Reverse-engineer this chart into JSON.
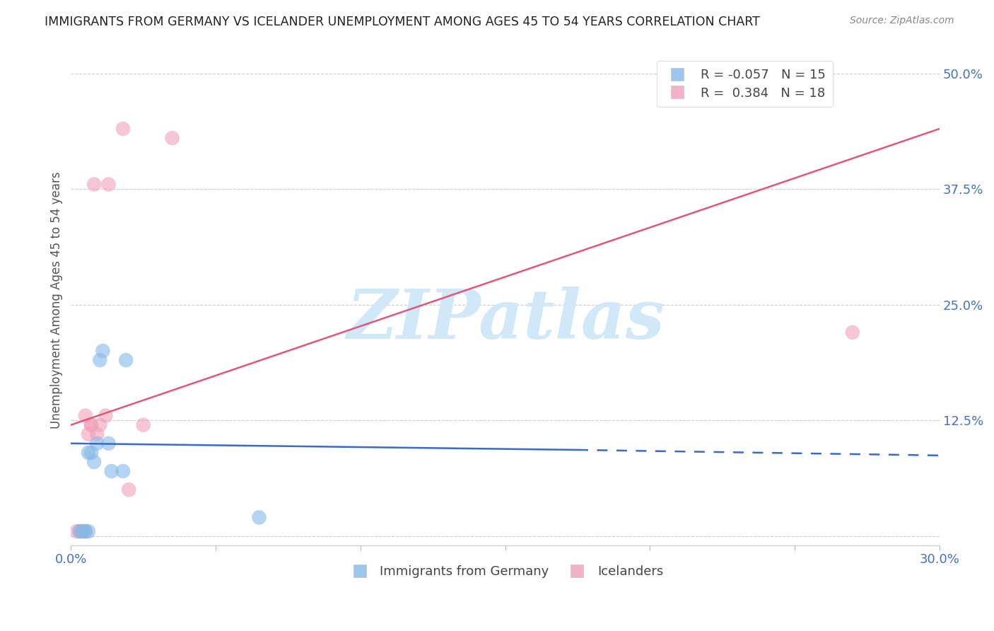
{
  "title": "IMMIGRANTS FROM GERMANY VS ICELANDER UNEMPLOYMENT AMONG AGES 45 TO 54 YEARS CORRELATION CHART",
  "source": "Source: ZipAtlas.com",
  "ylabel": "Unemployment Among Ages 45 to 54 years",
  "xlim": [
    0.0,
    0.3
  ],
  "ylim": [
    -0.01,
    0.52
  ],
  "yticks": [
    0.0,
    0.125,
    0.25,
    0.375,
    0.5
  ],
  "ytick_labels": [
    "",
    "12.5%",
    "25.0%",
    "37.5%",
    "50.0%"
  ],
  "xticks": [
    0.0,
    0.05,
    0.1,
    0.15,
    0.2,
    0.25,
    0.3
  ],
  "xtick_labels": [
    "0.0%",
    "",
    "",
    "",
    "",
    "",
    "30.0%"
  ],
  "watermark": "ZIPatlas",
  "blue_scatter_x": [
    0.003,
    0.004,
    0.005,
    0.006,
    0.006,
    0.007,
    0.008,
    0.009,
    0.01,
    0.011,
    0.013,
    0.014,
    0.018,
    0.019,
    0.065
  ],
  "blue_scatter_y": [
    0.005,
    0.005,
    0.005,
    0.005,
    0.09,
    0.09,
    0.08,
    0.1,
    0.19,
    0.2,
    0.1,
    0.07,
    0.07,
    0.19,
    0.02
  ],
  "pink_scatter_x": [
    0.002,
    0.003,
    0.004,
    0.005,
    0.005,
    0.006,
    0.007,
    0.007,
    0.008,
    0.009,
    0.01,
    0.012,
    0.013,
    0.018,
    0.02,
    0.025,
    0.035,
    0.27
  ],
  "pink_scatter_y": [
    0.005,
    0.005,
    0.005,
    0.005,
    0.13,
    0.11,
    0.12,
    0.12,
    0.38,
    0.11,
    0.12,
    0.13,
    0.38,
    0.44,
    0.05,
    0.12,
    0.43,
    0.22
  ],
  "blue_R": -0.057,
  "blue_N": 15,
  "pink_R": 0.384,
  "pink_N": 18,
  "blue_line_x": [
    0.0,
    0.175,
    0.3
  ],
  "blue_line_y": [
    0.1,
    0.093,
    0.087
  ],
  "blue_line_solid_end": 0.175,
  "pink_line_x": [
    0.0,
    0.3
  ],
  "pink_line_y": [
    0.12,
    0.44
  ],
  "blue_color": "#85B8E8",
  "pink_color": "#F0A0B8",
  "blue_line_color": "#3A6ACC",
  "pink_line_color": "#E05878",
  "title_color": "#222222",
  "axis_label_color": "#4472C4",
  "right_label_color": "#4472C4",
  "background_color": "#FFFFFF",
  "grid_color": "#CCCCCC",
  "watermark_color": "#D0E8F8",
  "legend_blue_label": "R = -0.057   N = 15",
  "legend_pink_label": "R =  0.384   N = 18",
  "bottom_legend_blue": "Immigrants from Germany",
  "bottom_legend_pink": "Icelanders"
}
